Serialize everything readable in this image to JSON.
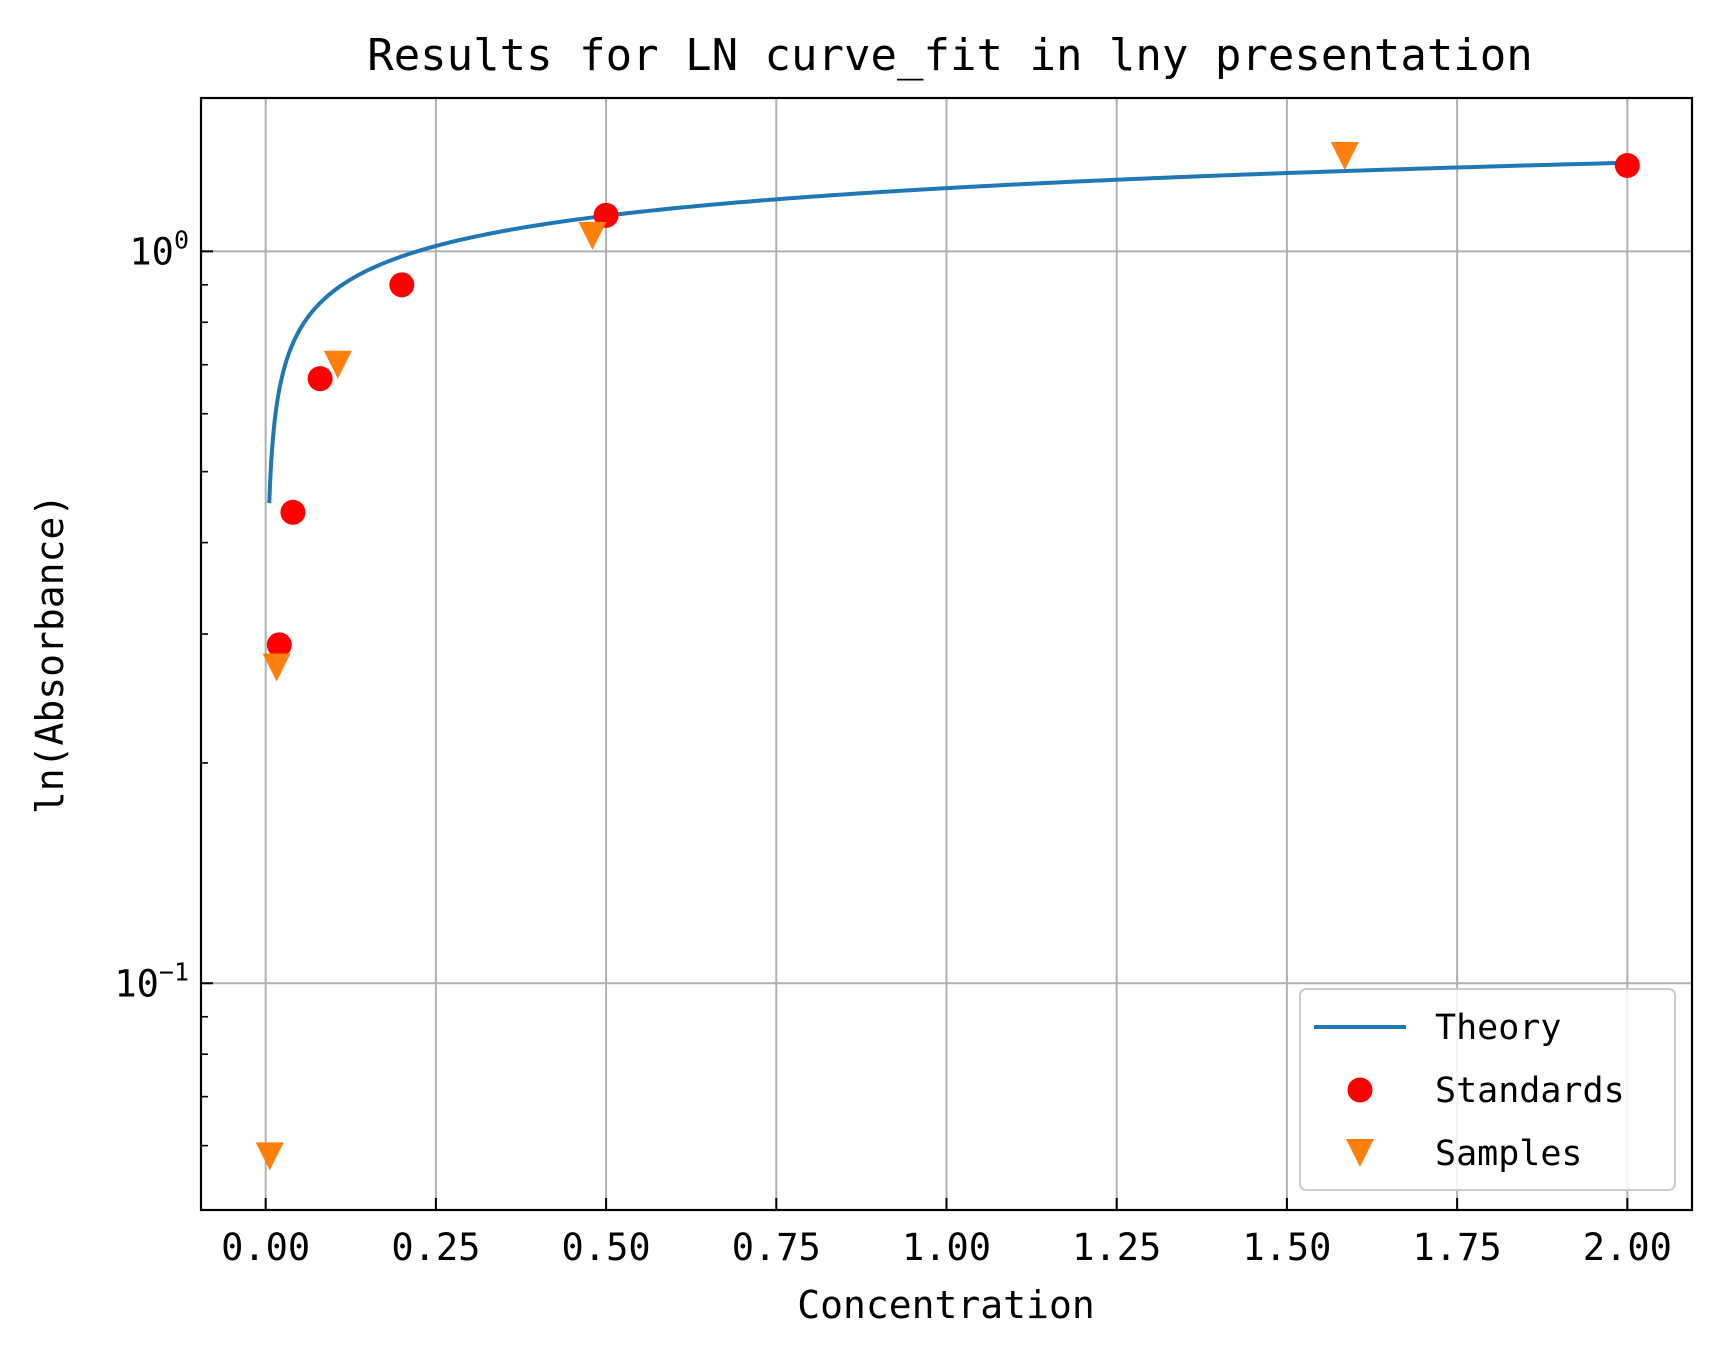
{
  "chart_data": {
    "type": "scatter",
    "title": "Results for LN curve_fit in lny presentation",
    "xlabel": "Concentration",
    "ylabel": "ln(Absorbance)",
    "xlim": [
      -0.095,
      2.095
    ],
    "ylim": [
      0.049,
      1.62
    ],
    "yscale": "log",
    "grid": true,
    "legend_position": "lower-right",
    "x_ticks": [
      0.0,
      0.25,
      0.5,
      0.75,
      1.0,
      1.25,
      1.5,
      1.75,
      2.0
    ],
    "x_tick_labels": [
      "0.00",
      "0.25",
      "0.50",
      "0.75",
      "1.00",
      "1.25",
      "1.50",
      "1.75",
      "2.00"
    ],
    "y_major_ticks": [
      {
        "value": 0.1,
        "base": "10",
        "exp": "−1"
      },
      {
        "value": 1.0,
        "base": "10",
        "exp": "0"
      }
    ],
    "y_minor_ticks": [
      0.06,
      0.07,
      0.08,
      0.09,
      0.2,
      0.3,
      0.4,
      0.5,
      0.6,
      0.7,
      0.8,
      0.9
    ],
    "series": [
      {
        "name": "Theory",
        "kind": "line",
        "color": "#1f77b4",
        "model": {
          "form": "a*ln(x)+b",
          "a": 0.1464,
          "b": 1.22
        },
        "x_range": [
          0.0053,
          2.0
        ]
      },
      {
        "name": "Standards",
        "kind": "marker",
        "marker": "circle",
        "color": "#ff0000",
        "x": [
          0.02,
          0.04,
          0.08,
          0.2,
          0.5,
          2.0
        ],
        "y": [
          0.29,
          0.44,
          0.67,
          0.9,
          1.12,
          1.31
        ]
      },
      {
        "name": "Samples",
        "kind": "marker",
        "marker": "triangle-down",
        "color": "#ff7f0e",
        "x": [
          0.006,
          0.016,
          0.106,
          0.48,
          1.585
        ],
        "y": [
          0.058,
          0.27,
          0.7,
          1.05,
          1.35
        ]
      }
    ]
  }
}
